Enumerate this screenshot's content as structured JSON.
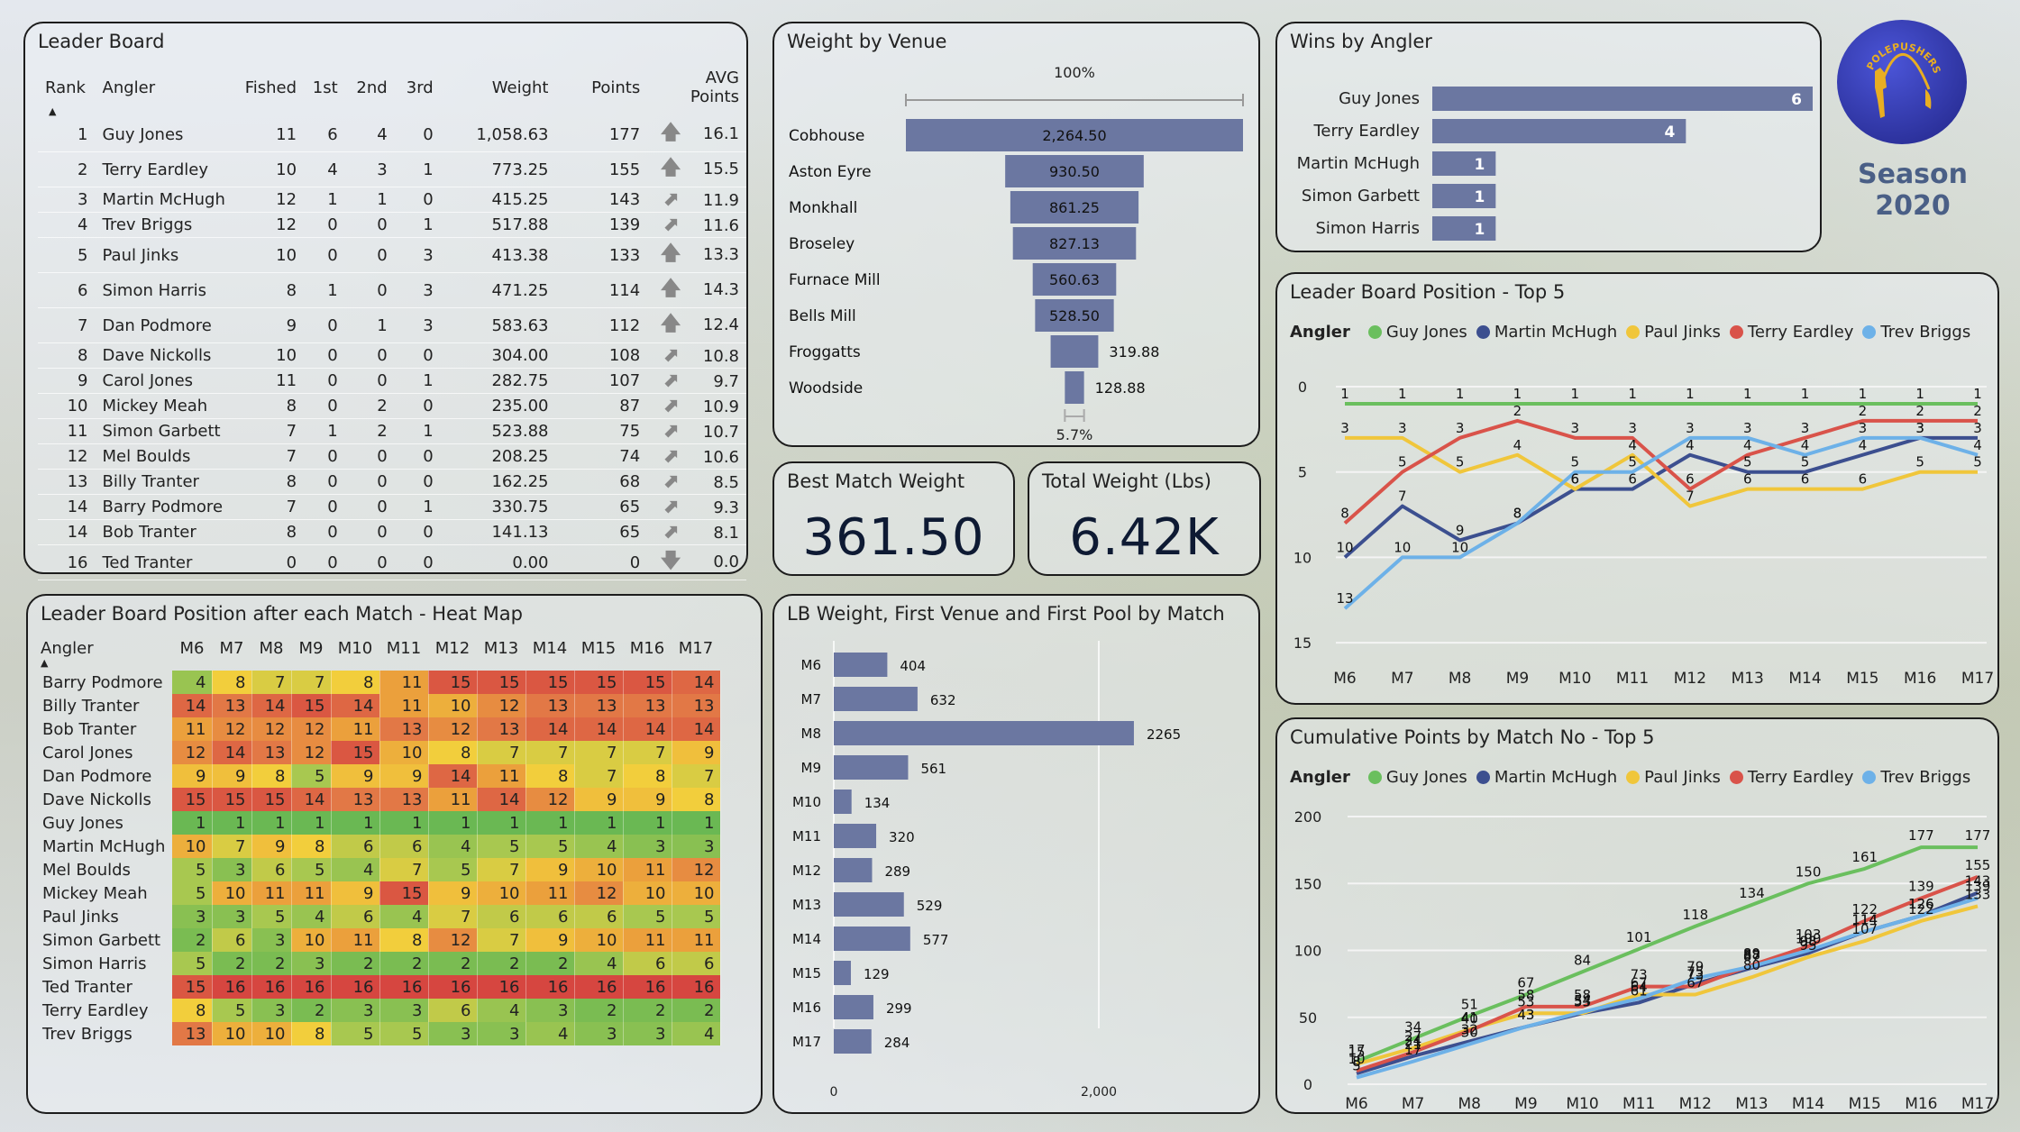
{
  "colors": {
    "bar": "#6b77a1",
    "guy_jones": "#6abf5e",
    "martin_mchugh": "#3c4f8f",
    "paul_jinks": "#f0c63b",
    "terry_eardley": "#d9534a",
    "trev_briggs": "#6db1e8"
  },
  "branding": {
    "club_name": "POLEPUSHERS AC",
    "season": "Season 2020"
  },
  "leader_board": {
    "title": "Leader Board",
    "columns": [
      "Rank",
      "Angler",
      "Fished",
      "1st",
      "2nd",
      "3rd",
      "Weight",
      "Points",
      "AVG Points"
    ],
    "sort": "Rank ascending",
    "rows": [
      {
        "rank": "1",
        "angler": "Guy Jones",
        "fished": "11",
        "first": "6",
        "second": "4",
        "third": "0",
        "weight": "1,058.63",
        "points": "177",
        "trend": "up",
        "avg": "16.1"
      },
      {
        "rank": "2",
        "angler": "Terry Eardley",
        "fished": "10",
        "first": "4",
        "second": "3",
        "third": "1",
        "weight": "773.25",
        "points": "155",
        "trend": "up",
        "avg": "15.5"
      },
      {
        "rank": "3",
        "angler": "Martin McHugh",
        "fished": "12",
        "first": "1",
        "second": "1",
        "third": "0",
        "weight": "415.25",
        "points": "143",
        "trend": "up-right",
        "avg": "11.9"
      },
      {
        "rank": "4",
        "angler": "Trev Briggs",
        "fished": "12",
        "first": "0",
        "second": "0",
        "third": "1",
        "weight": "517.88",
        "points": "139",
        "trend": "up-right",
        "avg": "11.6"
      },
      {
        "rank": "5",
        "angler": "Paul Jinks",
        "fished": "10",
        "first": "0",
        "second": "0",
        "third": "3",
        "weight": "413.38",
        "points": "133",
        "trend": "up",
        "avg": "13.3"
      },
      {
        "rank": "6",
        "angler": "Simon Harris",
        "fished": "8",
        "first": "1",
        "second": "0",
        "third": "3",
        "weight": "471.25",
        "points": "114",
        "trend": "up",
        "avg": "14.3"
      },
      {
        "rank": "7",
        "angler": "Dan Podmore",
        "fished": "9",
        "first": "0",
        "second": "1",
        "third": "3",
        "weight": "583.63",
        "points": "112",
        "trend": "up",
        "avg": "12.4"
      },
      {
        "rank": "8",
        "angler": "Dave Nickolls",
        "fished": "10",
        "first": "0",
        "second": "0",
        "third": "0",
        "weight": "304.00",
        "points": "108",
        "trend": "up-right",
        "avg": "10.8"
      },
      {
        "rank": "9",
        "angler": "Carol Jones",
        "fished": "11",
        "first": "0",
        "second": "0",
        "third": "1",
        "weight": "282.75",
        "points": "107",
        "trend": "up-right",
        "avg": "9.7"
      },
      {
        "rank": "10",
        "angler": "Mickey Meah",
        "fished": "8",
        "first": "0",
        "second": "2",
        "third": "0",
        "weight": "235.00",
        "points": "87",
        "trend": "up-right",
        "avg": "10.9"
      },
      {
        "rank": "11",
        "angler": "Simon Garbett",
        "fished": "7",
        "first": "1",
        "second": "2",
        "third": "1",
        "weight": "523.88",
        "points": "75",
        "trend": "up-right",
        "avg": "10.7"
      },
      {
        "rank": "12",
        "angler": "Mel Boulds",
        "fished": "7",
        "first": "0",
        "second": "0",
        "third": "0",
        "weight": "208.25",
        "points": "74",
        "trend": "up-right",
        "avg": "10.6"
      },
      {
        "rank": "13",
        "angler": "Billy Tranter",
        "fished": "8",
        "first": "0",
        "second": "0",
        "third": "0",
        "weight": "162.25",
        "points": "68",
        "trend": "up-right",
        "avg": "8.5"
      },
      {
        "rank": "14",
        "angler": "Barry Podmore",
        "fished": "7",
        "first": "0",
        "second": "0",
        "third": "1",
        "weight": "330.75",
        "points": "65",
        "trend": "up-right",
        "avg": "9.3"
      },
      {
        "rank": "14",
        "angler": "Bob Tranter",
        "fished": "8",
        "first": "0",
        "second": "0",
        "third": "0",
        "weight": "141.13",
        "points": "65",
        "trend": "up-right",
        "avg": "8.1"
      },
      {
        "rank": "16",
        "angler": "Ted Tranter",
        "fished": "0",
        "first": "0",
        "second": "0",
        "third": "0",
        "weight": "0.00",
        "points": "0",
        "trend": "down",
        "avg": "0.0"
      }
    ]
  },
  "cards": {
    "best_match_weight": {
      "label": "Best Match Weight",
      "value": "361.50"
    },
    "total_weight": {
      "label": "Total Weight (Lbs)",
      "value": "6.42K"
    }
  },
  "chart_data": [
    {
      "id": "weight_by_venue",
      "type": "bar",
      "subtype": "funnel",
      "title": "Weight by Venue",
      "top_label": "100%",
      "bottom_label": "5.7%",
      "categories": [
        "Cobhouse",
        "Aston Eyre",
        "Monkhall",
        "Broseley",
        "Furnace Mill",
        "Bells Mill",
        "Froggatts",
        "Woodside"
      ],
      "values": [
        2264.5,
        930.5,
        861.25,
        827.13,
        560.63,
        528.5,
        319.88,
        128.88
      ],
      "value_labels": [
        "2,264.50",
        "930.50",
        "861.25",
        "827.13",
        "560.63",
        "528.50",
        "319.88",
        "128.88"
      ]
    },
    {
      "id": "wins_by_angler",
      "type": "bar",
      "title": "Wins by Angler",
      "categories": [
        "Guy Jones",
        "Terry Eardley",
        "Martin McHugh",
        "Simon Garbett",
        "Simon Harris"
      ],
      "values": [
        6,
        4,
        1,
        1,
        1
      ]
    },
    {
      "id": "lb_weight_by_match",
      "type": "bar",
      "title": "LB Weight, First Venue and First Pool by Match",
      "categories": [
        "M6",
        "M7",
        "M8",
        "M9",
        "M10",
        "M11",
        "M12",
        "M13",
        "M14",
        "M15",
        "M16",
        "M17"
      ],
      "values": [
        404,
        632,
        2265,
        561,
        134,
        320,
        289,
        529,
        577,
        129,
        299,
        284
      ],
      "xlim": [
        0,
        2500
      ],
      "xticks": [
        "0",
        "2,000"
      ],
      "xtick_values": [
        0,
        2000
      ]
    },
    {
      "id": "heat_map",
      "type": "heatmap",
      "title": "Leader Board Position after each Match - Heat Map",
      "row_header": "Angler",
      "columns": [
        "M6",
        "M7",
        "M8",
        "M9",
        "M10",
        "M11",
        "M12",
        "M13",
        "M14",
        "M15",
        "M16",
        "M17"
      ],
      "rows": [
        {
          "angler": "Barry Podmore",
          "values": [
            4,
            8,
            7,
            7,
            8,
            11,
            15,
            15,
            15,
            15,
            15,
            14
          ]
        },
        {
          "angler": "Billy Tranter",
          "values": [
            14,
            13,
            14,
            15,
            14,
            11,
            10,
            12,
            13,
            13,
            13,
            13
          ]
        },
        {
          "angler": "Bob Tranter",
          "values": [
            11,
            12,
            12,
            12,
            11,
            13,
            12,
            13,
            14,
            14,
            14,
            14
          ]
        },
        {
          "angler": "Carol Jones",
          "values": [
            12,
            14,
            13,
            12,
            15,
            10,
            8,
            7,
            7,
            7,
            7,
            9
          ]
        },
        {
          "angler": "Dan Podmore",
          "values": [
            9,
            9,
            8,
            5,
            9,
            9,
            14,
            11,
            8,
            7,
            8,
            7
          ]
        },
        {
          "angler": "Dave Nickolls",
          "values": [
            15,
            15,
            15,
            14,
            13,
            13,
            11,
            14,
            12,
            9,
            9,
            8
          ]
        },
        {
          "angler": "Guy Jones",
          "values": [
            1,
            1,
            1,
            1,
            1,
            1,
            1,
            1,
            1,
            1,
            1,
            1
          ]
        },
        {
          "angler": "Martin McHugh",
          "values": [
            10,
            7,
            9,
            8,
            6,
            6,
            4,
            5,
            5,
            4,
            3,
            3
          ]
        },
        {
          "angler": "Mel Boulds",
          "values": [
            5,
            3,
            6,
            5,
            4,
            7,
            5,
            7,
            9,
            10,
            11,
            12
          ]
        },
        {
          "angler": "Mickey Meah",
          "values": [
            5,
            10,
            11,
            11,
            9,
            15,
            9,
            10,
            11,
            12,
            10,
            10
          ]
        },
        {
          "angler": "Paul Jinks",
          "values": [
            3,
            3,
            5,
            4,
            6,
            4,
            7,
            6,
            6,
            6,
            5,
            5
          ]
        },
        {
          "angler": "Simon Garbett",
          "values": [
            2,
            6,
            3,
            10,
            11,
            8,
            12,
            7,
            9,
            10,
            11,
            11
          ]
        },
        {
          "angler": "Simon Harris",
          "values": [
            5,
            2,
            2,
            3,
            2,
            2,
            2,
            2,
            2,
            4,
            6,
            6
          ]
        },
        {
          "angler": "Ted Tranter",
          "values": [
            15,
            16,
            16,
            16,
            16,
            16,
            16,
            16,
            16,
            16,
            16,
            16
          ]
        },
        {
          "angler": "Terry Eardley",
          "values": [
            8,
            5,
            3,
            2,
            3,
            3,
            6,
            4,
            3,
            2,
            2,
            2
          ]
        },
        {
          "angler": "Trev Briggs",
          "values": [
            13,
            10,
            10,
            8,
            5,
            5,
            3,
            3,
            4,
            3,
            3,
            4
          ]
        }
      ]
    },
    {
      "id": "lb_position_top5",
      "type": "line",
      "title": "Leader Board Position - Top 5",
      "legend_title": "Angler",
      "legend_position": "top-left",
      "x": [
        "M6",
        "M7",
        "M8",
        "M9",
        "M10",
        "M11",
        "M12",
        "M13",
        "M14",
        "M15",
        "M16",
        "M17"
      ],
      "ylim": [
        0,
        16
      ],
      "y_inverted": true,
      "yticks": [
        0,
        5,
        10,
        15
      ],
      "grid": true,
      "series": [
        {
          "name": "Guy Jones",
          "color_key": "guy_jones",
          "values": [
            1,
            1,
            1,
            1,
            1,
            1,
            1,
            1,
            1,
            1,
            1,
            1
          ]
        },
        {
          "name": "Martin McHugh",
          "color_key": "martin_mchugh",
          "values": [
            10,
            7,
            9,
            8,
            6,
            6,
            4,
            5,
            5,
            4,
            3,
            3
          ]
        },
        {
          "name": "Paul Jinks",
          "color_key": "paul_jinks",
          "values": [
            3,
            3,
            5,
            4,
            6,
            4,
            7,
            6,
            6,
            6,
            5,
            5
          ]
        },
        {
          "name": "Terry Eardley",
          "color_key": "terry_eardley",
          "values": [
            8,
            5,
            3,
            2,
            3,
            3,
            6,
            4,
            3,
            2,
            2,
            2
          ]
        },
        {
          "name": "Trev Briggs",
          "color_key": "trev_briggs",
          "values": [
            13,
            10,
            10,
            8,
            5,
            5,
            3,
            3,
            4,
            3,
            3,
            4
          ]
        }
      ]
    },
    {
      "id": "cumulative_points_top5",
      "type": "line",
      "title": "Cumulative Points by Match No - Top 5",
      "legend_title": "Angler",
      "legend_position": "top-left",
      "x": [
        "M6",
        "M7",
        "M8",
        "M9",
        "M10",
        "M11",
        "M12",
        "M13",
        "M14",
        "M15",
        "M16",
        "M17"
      ],
      "ylim": [
        0,
        200
      ],
      "yticks": [
        0,
        50,
        100,
        150,
        200
      ],
      "grid": true,
      "series": [
        {
          "name": "Guy Jones",
          "color_key": "guy_jones",
          "values": [
            17,
            34,
            51,
            67,
            84,
            101,
            118,
            134,
            150,
            161,
            177,
            177
          ]
        },
        {
          "name": "Martin McHugh",
          "color_key": "martin_mchugh",
          "values": [
            8,
            21,
            32,
            43,
            53,
            61,
            75,
            87,
            98,
            114,
            126,
            143
          ]
        },
        {
          "name": "Paul Jinks",
          "color_key": "paul_jinks",
          "values": [
            15,
            27,
            41,
            53,
            53,
            67,
            67,
            80,
            95,
            107,
            122,
            133
          ]
        },
        {
          "name": "Terry Eardley",
          "color_key": "terry_eardley",
          "values": [
            10,
            24,
            40,
            58,
            58,
            73,
            73,
            89,
            103,
            122,
            139,
            155
          ]
        },
        {
          "name": "Trev Briggs",
          "color_key": "trev_briggs",
          "values": [
            5,
            17,
            30,
            43,
            54,
            64,
            79,
            88,
            100,
            114,
            126,
            139
          ]
        }
      ]
    }
  ]
}
